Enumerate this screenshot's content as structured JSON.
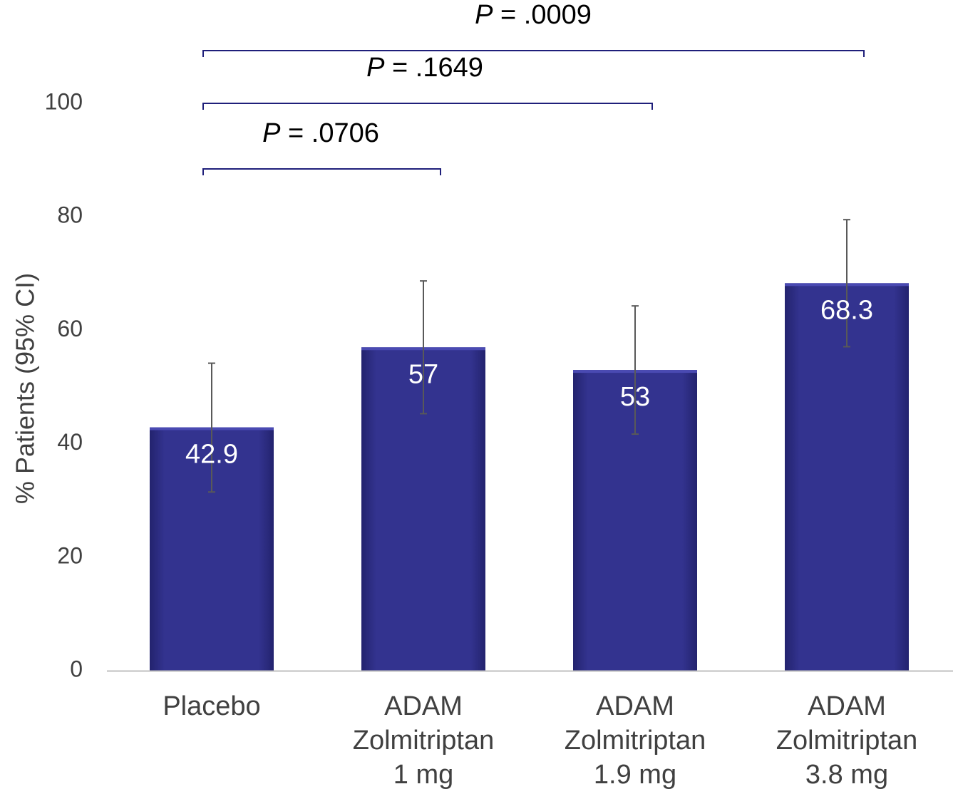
{
  "chart_data": {
    "type": "bar",
    "categories": [
      [
        "Placebo"
      ],
      [
        "ADAM",
        "Zolmitriptan",
        "1 mg"
      ],
      [
        "ADAM",
        "Zolmitriptan",
        "1.9 mg"
      ],
      [
        "ADAM",
        "Zolmitriptan",
        "3.8 mg"
      ]
    ],
    "values": [
      42.9,
      57,
      53,
      68.3
    ],
    "value_labels": [
      "42.9",
      "57",
      "53",
      "68.3"
    ],
    "error_bars": [
      {
        "low": 31.5,
        "high": 54.2
      },
      {
        "low": 45.3,
        "high": 68.7
      },
      {
        "low": 41.7,
        "high": 64.3
      },
      {
        "low": 57.1,
        "high": 79.5
      }
    ],
    "ylabel": "% Patients (95% CI)",
    "ylim": [
      0,
      100
    ],
    "yticks": [
      0,
      20,
      40,
      60,
      80,
      100
    ],
    "grid": false,
    "legend": "none",
    "comparisons": [
      {
        "from": 0,
        "to": 1,
        "p_italic": "P",
        "p_text": " = .0706"
      },
      {
        "from": 0,
        "to": 2,
        "p_italic": "P",
        "p_text": " = .1649"
      },
      {
        "from": 0,
        "to": 3,
        "p_italic": "P",
        "p_text": " = .0009"
      }
    ],
    "colors": {
      "bar": "#33338f",
      "bar_top": "#4a4ab2",
      "bar_edge": "#23236e",
      "error_bar": "#595959",
      "bracket": "#1f1f7a",
      "axis": "#bfbfbf"
    }
  }
}
